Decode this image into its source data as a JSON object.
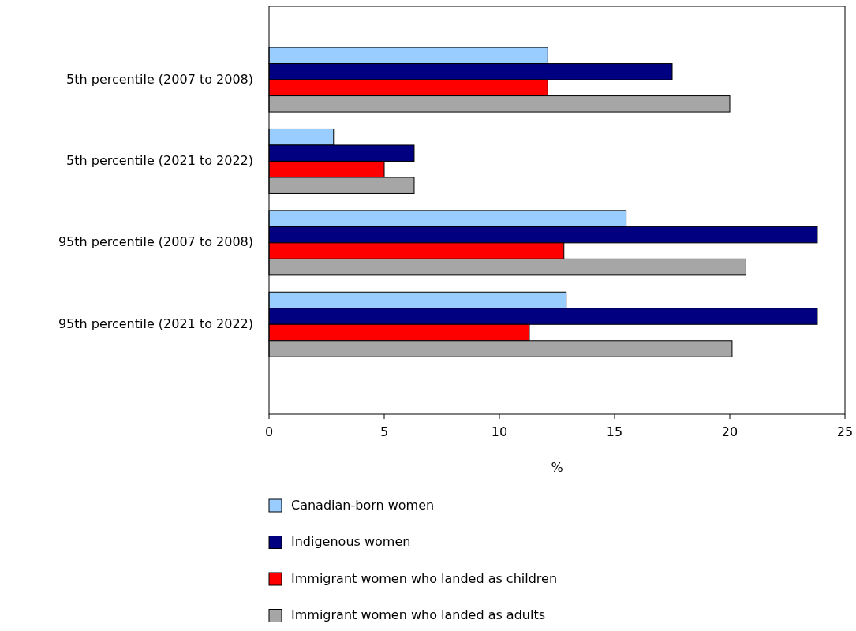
{
  "chart_data": {
    "type": "bar",
    "orientation": "horizontal",
    "xlabel": "%",
    "categories": [
      "5th percentile (2007 to 2008)",
      "5th percentile (2021 to 2022)",
      "95th percentile (2007 to 2008)",
      "95th percentile (2021 to 2022)"
    ],
    "series": [
      {
        "name": "Canadian-born women",
        "color": "#99ccff",
        "values": [
          12.1,
          2.8,
          15.5,
          12.9
        ]
      },
      {
        "name": "Indigenous women",
        "color": "#000080",
        "values": [
          17.5,
          6.3,
          23.8,
          23.8
        ]
      },
      {
        "name": "Immigrant women who landed as children",
        "color": "#ff0000",
        "values": [
          12.1,
          5.0,
          12.8,
          11.3
        ]
      },
      {
        "name": "Immigrant women who landed as adults",
        "color": "#a6a6a6",
        "values": [
          20.0,
          6.3,
          20.7,
          20.1
        ]
      }
    ],
    "xlim": [
      0,
      25
    ],
    "xticks": [
      0,
      5,
      10,
      15,
      20,
      25
    ],
    "grid": false,
    "legend": "bottom"
  }
}
